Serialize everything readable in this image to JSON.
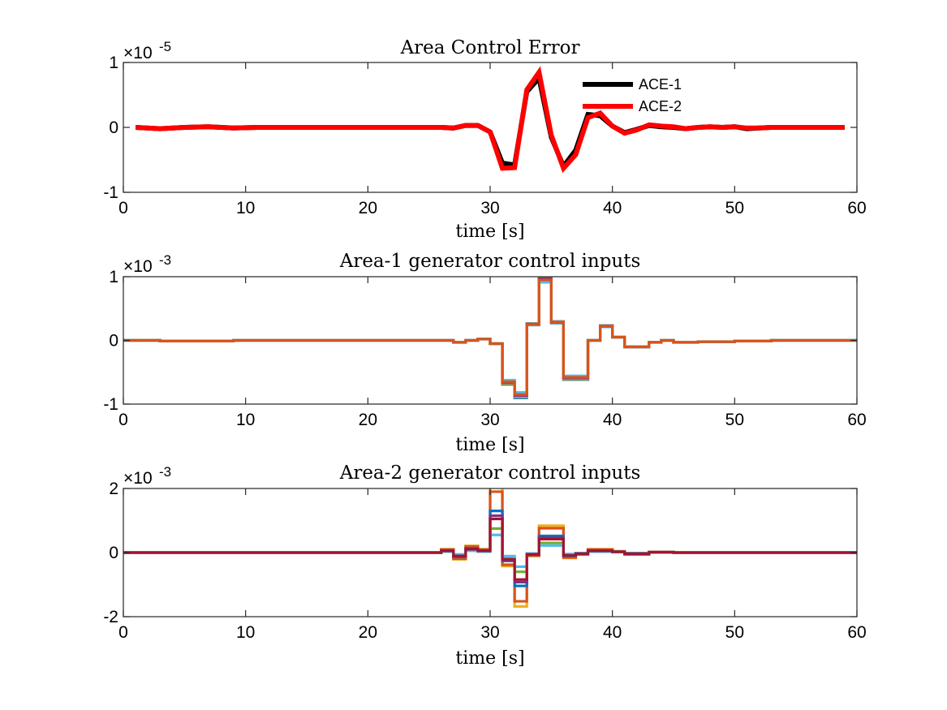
{
  "chart_data": [
    {
      "type": "line",
      "title": "Area Control Error",
      "xlabel": "time [s]",
      "ylabel": "",
      "xlim": [
        0,
        60
      ],
      "ylim": [
        -1,
        1
      ],
      "xticks": [
        "0",
        "10",
        "20",
        "30",
        "40",
        "50",
        "60"
      ],
      "yticks": [
        "-1",
        "0",
        "1"
      ],
      "ytick_values": [
        -1,
        0,
        1
      ],
      "exponent_label": "×10",
      "exponent": "-5",
      "grid": false,
      "legend_position": "top-right",
      "series": [
        {
          "name": "ACE-1",
          "color": "#000000",
          "x": [
            1,
            3,
            5,
            7,
            9,
            11,
            13,
            15,
            17,
            19,
            21,
            23,
            25,
            26,
            27,
            28,
            29,
            30,
            31,
            32,
            33,
            34,
            35,
            36,
            37,
            38,
            39,
            40,
            41,
            42,
            43,
            44,
            45,
            46,
            47,
            48,
            49,
            50,
            51,
            52,
            53,
            54,
            55,
            56,
            57,
            58,
            59
          ],
          "y": [
            0,
            -0.02,
            0,
            0.01,
            -0.01,
            0,
            0,
            0,
            0,
            0,
            0,
            0,
            0,
            0,
            -0.01,
            0.03,
            0.03,
            -0.07,
            -0.55,
            -0.58,
            0.55,
            0.76,
            -0.15,
            -0.6,
            -0.35,
            0.2,
            0.18,
            0.02,
            -0.08,
            -0.03,
            0.03,
            0.01,
            0,
            -0.02,
            0,
            0.01,
            0,
            0.01,
            -0.02,
            -0.01,
            0,
            0,
            0,
            0,
            0,
            0,
            0
          ]
        },
        {
          "name": "ACE-2",
          "color": "#ff0000",
          "x": [
            1,
            3,
            5,
            7,
            9,
            11,
            13,
            15,
            17,
            19,
            21,
            23,
            25,
            26,
            27,
            28,
            29,
            30,
            31,
            32,
            33,
            34,
            35,
            36,
            37,
            38,
            39,
            40,
            41,
            42,
            43,
            44,
            45,
            46,
            47,
            48,
            49,
            50,
            51,
            52,
            53,
            54,
            55,
            56,
            57,
            58,
            59
          ],
          "y": [
            0,
            -0.02,
            0,
            0.01,
            -0.01,
            0,
            0,
            0,
            0,
            0,
            0,
            0,
            0,
            0,
            -0.01,
            0.03,
            0.03,
            -0.07,
            -0.63,
            -0.62,
            0.58,
            0.85,
            -0.12,
            -0.63,
            -0.42,
            0.15,
            0.22,
            0.02,
            -0.09,
            -0.04,
            0.04,
            0.02,
            0.01,
            -0.02,
            0,
            0.01,
            0,
            0.01,
            -0.01,
            -0.01,
            0,
            0,
            0,
            0,
            0,
            0,
            0
          ]
        }
      ]
    },
    {
      "type": "line",
      "title": "Area-1 generator control inputs",
      "xlabel": "time [s]",
      "ylabel": "",
      "xlim": [
        0,
        60
      ],
      "ylim": [
        -1,
        1
      ],
      "xticks": [
        "0",
        "10",
        "20",
        "30",
        "40",
        "50",
        "60"
      ],
      "yticks": [
        "-1",
        "0",
        "1"
      ],
      "ytick_values": [
        -1,
        0,
        1
      ],
      "exponent_label": "×10",
      "exponent": "-3",
      "grid": false,
      "step": true,
      "base": {
        "t": [
          0,
          3,
          9,
          26,
          27,
          28,
          29,
          30,
          31,
          32,
          33,
          34,
          35,
          36,
          38,
          39,
          40,
          41,
          43,
          44,
          45,
          47,
          50,
          53,
          60
        ],
        "v": [
          0,
          -0.01,
          0,
          0,
          -0.03,
          0,
          0.02,
          -0.05,
          -0.65,
          -0.85,
          0.25,
          0.95,
          0.28,
          -0.58,
          0,
          0.22,
          0.05,
          -0.1,
          -0.03,
          0,
          -0.03,
          -0.02,
          -0.01,
          0,
          0
        ]
      },
      "series": [
        {
          "color": "#0072bd",
          "scale": 1.06,
          "offset": 0
        },
        {
          "color": "#edb120",
          "scale": 1.04,
          "offset": 0
        },
        {
          "color": "#7e2f8e",
          "scale": 1.02,
          "offset": 0
        },
        {
          "color": "#77ac30",
          "scale": 0.98,
          "offset": 0
        },
        {
          "color": "#4dbeee",
          "scale": 0.96,
          "offset": 0
        },
        {
          "color": "#d95319",
          "scale": 1.0,
          "offset": 0
        }
      ]
    },
    {
      "type": "line",
      "title": "Area-2 generator control inputs",
      "xlabel": "time [s]",
      "ylabel": "",
      "xlim": [
        0,
        60
      ],
      "ylim": [
        -2,
        2
      ],
      "xticks": [
        "0",
        "10",
        "20",
        "30",
        "40",
        "50",
        "60"
      ],
      "yticks": [
        "-2",
        "0",
        "2"
      ],
      "ytick_values": [
        -2,
        0,
        2
      ],
      "exponent_label": "×10",
      "exponent": "-3",
      "grid": false,
      "step": true,
      "base": {
        "t": [
          0,
          26,
          27,
          28,
          29,
          30,
          31,
          32,
          33,
          34,
          36,
          37,
          38,
          40,
          41,
          43,
          45,
          50,
          60
        ],
        "v": [
          0,
          0.05,
          -0.1,
          0.1,
          0.05,
          1.0,
          -0.2,
          -0.8,
          -0.05,
          0.4,
          -0.08,
          -0.03,
          0.05,
          0.02,
          -0.03,
          0.01,
          0,
          0,
          0
        ]
      },
      "series": [
        {
          "color": "#edb120",
          "scale": 2.1,
          "offset": 0
        },
        {
          "color": "#d95319",
          "scale": 1.9,
          "offset": 0
        },
        {
          "color": "#0072bd",
          "scale": 1.3,
          "offset": 0
        },
        {
          "color": "#7e2f8e",
          "scale": 1.15,
          "offset": 0
        },
        {
          "color": "#77ac30",
          "scale": 0.75,
          "offset": 0
        },
        {
          "color": "#4dbeee",
          "scale": 0.55,
          "offset": 0
        },
        {
          "color": "#a2142f",
          "scale": 1.05,
          "offset": 0
        }
      ]
    }
  ]
}
